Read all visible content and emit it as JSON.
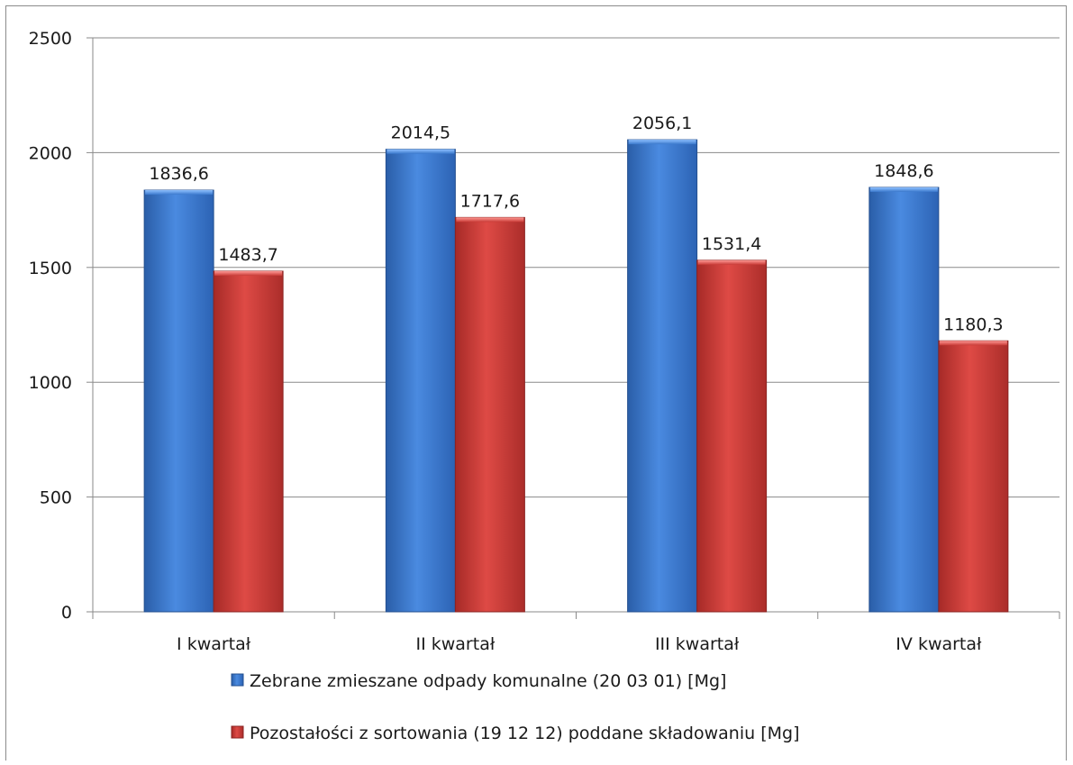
{
  "chart_data": {
    "type": "bar",
    "categories": [
      "I kwartał",
      "II kwartał",
      "III kwartał",
      "IV kwartał"
    ],
    "series": [
      {
        "name": "Zebrane zmieszane odpady komunalne (20 03 01) [Mg]",
        "values": [
          1836.6,
          2014.5,
          2056.1,
          1848.6
        ],
        "labels": [
          "1836,6",
          "2014,5",
          "2056,1",
          "1848,6"
        ],
        "color": "#3a78cc"
      },
      {
        "name": "Pozostałości z sortowania (19 12 12) poddane składowaniu [Mg]",
        "values": [
          1483.7,
          1717.6,
          1531.4,
          1180.3
        ],
        "labels": [
          "1483,7",
          "1717,6",
          "1531,4",
          "1180,3"
        ],
        "color": "#c83a36"
      }
    ],
    "ylim": [
      0,
      2500
    ],
    "yticks": [
      0,
      500,
      1000,
      1500,
      2000,
      2500
    ],
    "grid": true,
    "legend_position": "bottom"
  }
}
